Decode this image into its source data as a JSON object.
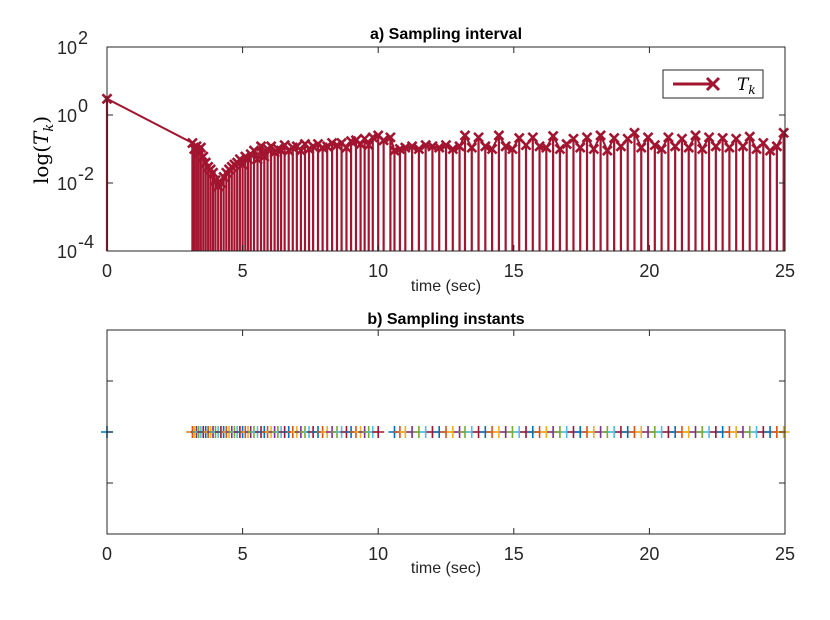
{
  "chart_data": [
    {
      "type": "line",
      "title": "a) Sampling interval",
      "xlabel": "time (sec)",
      "ylabel_prefix": "log(",
      "ylabel_symbol": "T",
      "ylabel_subscript": "k",
      "ylabel_suffix": ")",
      "xlim": [
        0,
        25
      ],
      "ylim": [
        0.0001,
        100
      ],
      "yscale": "log",
      "grid": false,
      "legend_position": "top-right",
      "color": "#a2142f",
      "marker": "x",
      "xticks": [
        0,
        5,
        10,
        15,
        20,
        25
      ],
      "yticks": [
        {
          "value": 0.0001,
          "base": "10",
          "exp": "-4"
        },
        {
          "value": 0.01,
          "base": "10",
          "exp": "-2"
        },
        {
          "value": 1,
          "base": "10",
          "exp": "0"
        },
        {
          "value": 100,
          "base": "10",
          "exp": "2"
        }
      ],
      "series": [
        {
          "legend_symbol": "T",
          "legend_subscript": "k",
          "x": [
            0.0,
            3.15,
            3.22,
            3.3,
            3.38,
            3.46,
            3.55,
            3.64,
            3.73,
            3.82,
            3.91,
            4.0,
            4.1,
            4.2,
            4.3,
            4.4,
            4.5,
            4.6,
            4.7,
            4.8,
            4.9,
            5.0,
            5.1,
            5.2,
            5.3,
            5.42,
            5.55,
            5.68,
            5.8,
            5.92,
            6.05,
            6.18,
            6.3,
            6.42,
            6.55,
            6.7,
            6.85,
            7.0,
            7.15,
            7.3,
            7.45,
            7.6,
            7.78,
            7.95,
            8.12,
            8.3,
            8.48,
            8.65,
            8.83,
            9.0,
            9.18,
            9.35,
            9.5,
            9.65,
            9.8,
            10.0,
            10.2,
            10.45,
            10.6,
            10.8,
            11.0,
            11.25,
            11.5,
            11.75,
            12.0,
            12.25,
            12.5,
            12.75,
            13.0,
            13.2,
            13.45,
            13.7,
            13.95,
            14.2,
            14.45,
            14.7,
            14.95,
            15.2,
            15.45,
            15.7,
            15.95,
            16.2,
            16.45,
            16.7,
            16.95,
            17.2,
            17.45,
            17.7,
            17.95,
            18.2,
            18.45,
            18.7,
            18.95,
            19.2,
            19.45,
            19.7,
            19.95,
            20.2,
            20.45,
            20.7,
            20.95,
            21.2,
            21.45,
            21.7,
            21.95,
            22.2,
            22.45,
            22.7,
            22.95,
            23.2,
            23.45,
            23.7,
            23.95,
            24.2,
            24.45,
            24.7,
            24.95
          ],
          "y": [
            3.0,
            0.15,
            0.1,
            0.12,
            0.08,
            0.11,
            0.06,
            0.04,
            0.03,
            0.025,
            0.02,
            0.012,
            0.008,
            0.01,
            0.015,
            0.02,
            0.025,
            0.03,
            0.035,
            0.04,
            0.05,
            0.035,
            0.06,
            0.05,
            0.07,
            0.09,
            0.05,
            0.12,
            0.06,
            0.1,
            0.12,
            0.08,
            0.1,
            0.09,
            0.13,
            0.09,
            0.11,
            0.12,
            0.09,
            0.14,
            0.1,
            0.12,
            0.14,
            0.11,
            0.12,
            0.15,
            0.13,
            0.15,
            0.11,
            0.17,
            0.18,
            0.14,
            0.2,
            0.13,
            0.22,
            0.25,
            0.18,
            0.22,
            0.09,
            0.1,
            0.11,
            0.12,
            0.1,
            0.13,
            0.12,
            0.11,
            0.13,
            0.1,
            0.12,
            0.25,
            0.11,
            0.22,
            0.12,
            0.1,
            0.25,
            0.12,
            0.1,
            0.21,
            0.13,
            0.22,
            0.12,
            0.11,
            0.24,
            0.1,
            0.14,
            0.2,
            0.11,
            0.22,
            0.1,
            0.25,
            0.09,
            0.21,
            0.12,
            0.2,
            0.3,
            0.11,
            0.22,
            0.13,
            0.1,
            0.22,
            0.12,
            0.2,
            0.11,
            0.25,
            0.1,
            0.22,
            0.12,
            0.21,
            0.11,
            0.2,
            0.12,
            0.23,
            0.1,
            0.15,
            0.09,
            0.12,
            0.3
          ]
        }
      ]
    },
    {
      "type": "scatter",
      "title": "b) Sampling instants",
      "xlabel": "time (sec)",
      "xlim": [
        0,
        25
      ],
      "ylim": [
        0,
        2
      ],
      "grid": false,
      "marker": "+",
      "xticks": [
        0,
        5,
        10,
        15,
        20,
        25
      ],
      "colors": [
        "#0072bd",
        "#d95319",
        "#edb120",
        "#7e2f8e",
        "#77ac30",
        "#4dbeee",
        "#a2142f"
      ],
      "series": [
        {
          "x": [
            0.0,
            3.15,
            3.22,
            3.3,
            3.38,
            3.46,
            3.55,
            3.64,
            3.73,
            3.82,
            3.91,
            4.0,
            4.1,
            4.2,
            4.3,
            4.4,
            4.5,
            4.6,
            4.7,
            4.8,
            4.9,
            5.0,
            5.1,
            5.2,
            5.3,
            5.42,
            5.55,
            5.68,
            5.8,
            5.92,
            6.05,
            6.18,
            6.3,
            6.42,
            6.55,
            6.7,
            6.85,
            7.0,
            7.15,
            7.3,
            7.45,
            7.6,
            7.78,
            7.95,
            8.12,
            8.3,
            8.48,
            8.65,
            8.83,
            9.0,
            9.18,
            9.35,
            9.5,
            9.65,
            9.8,
            10.0,
            10.6,
            10.8,
            11.0,
            11.25,
            11.5,
            11.75,
            12.0,
            12.25,
            12.5,
            12.75,
            13.0,
            13.2,
            13.45,
            13.7,
            13.95,
            14.2,
            14.45,
            14.7,
            14.95,
            15.2,
            15.45,
            15.7,
            15.95,
            16.2,
            16.45,
            16.7,
            16.95,
            17.2,
            17.45,
            17.7,
            17.95,
            18.2,
            18.45,
            18.7,
            18.95,
            19.2,
            19.45,
            19.7,
            19.95,
            20.2,
            20.45,
            20.7,
            20.95,
            21.2,
            21.45,
            21.7,
            21.95,
            22.2,
            22.45,
            22.7,
            22.95,
            23.2,
            23.45,
            23.7,
            23.95,
            24.2,
            24.45,
            24.7,
            24.95
          ],
          "y_constant": 1
        }
      ]
    }
  ]
}
